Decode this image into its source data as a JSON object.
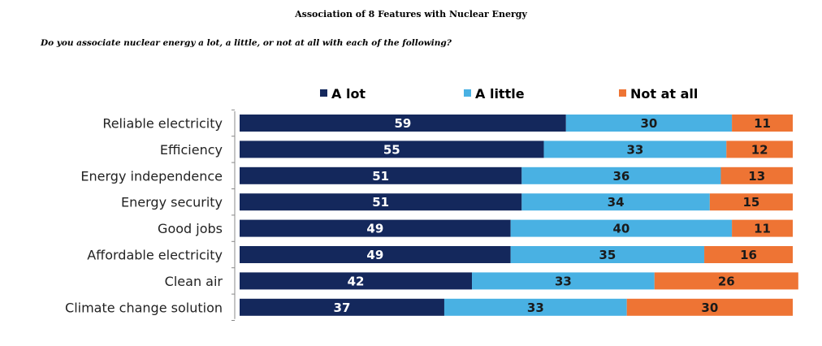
{
  "title": "Association of 8 Features with Nuclear Energy",
  "subtitle": "Do you associate nuclear energy a lot, a little, or not at all with each of the following?",
  "chart_data": {
    "type": "bar",
    "orientation": "horizontal",
    "stacked": true,
    "categories": [
      "Reliable electricity",
      "Efficiency",
      "Energy independence",
      "Energy security",
      "Good jobs",
      "Affordable electricity",
      "Clean air",
      "Climate change solution"
    ],
    "series": [
      {
        "name": "A lot",
        "color": "#14285c",
        "label_color": "#ffffff",
        "values": [
          59,
          55,
          51,
          51,
          49,
          49,
          42,
          37
        ]
      },
      {
        "name": "A little",
        "color": "#49b1e3",
        "label_color": "#1a1a1a",
        "values": [
          30,
          33,
          36,
          34,
          40,
          35,
          33,
          33
        ]
      },
      {
        "name": "Not at all",
        "color": "#ee7434",
        "label_color": "#1a1a1a",
        "values": [
          11,
          12,
          13,
          15,
          11,
          16,
          26,
          30
        ]
      }
    ],
    "xlim": [
      0,
      100
    ],
    "legend": "top",
    "grid": false
  }
}
